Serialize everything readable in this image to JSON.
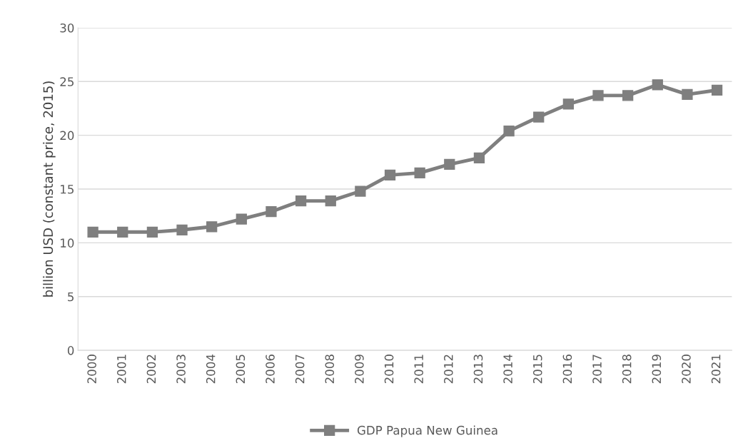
{
  "chart_data": {
    "type": "line",
    "ylabel": "billion USD (constant price, 2015)",
    "categories": [
      "2000",
      "2001",
      "2002",
      "2003",
      "2004",
      "2005",
      "2006",
      "2007",
      "2008",
      "2009",
      "2010",
      "2011",
      "2012",
      "2013",
      "2014",
      "2015",
      "2016",
      "2017",
      "2018",
      "2019",
      "2020",
      "2021"
    ],
    "series": [
      {
        "name": "GDP Papua New Guinea",
        "color": "#7f7f7f",
        "values": [
          11.0,
          11.0,
          11.0,
          11.2,
          11.5,
          12.2,
          12.9,
          13.9,
          13.9,
          14.8,
          16.3,
          16.5,
          17.3,
          17.9,
          20.4,
          21.7,
          22.9,
          23.7,
          23.7,
          24.7,
          23.8,
          24.2
        ]
      }
    ],
    "ylim": [
      0,
      30
    ],
    "yticks": [
      0,
      5,
      10,
      15,
      20,
      25,
      30
    ],
    "grid": "y",
    "legend": "bottom",
    "marker": "square",
    "line_style": "solid"
  }
}
